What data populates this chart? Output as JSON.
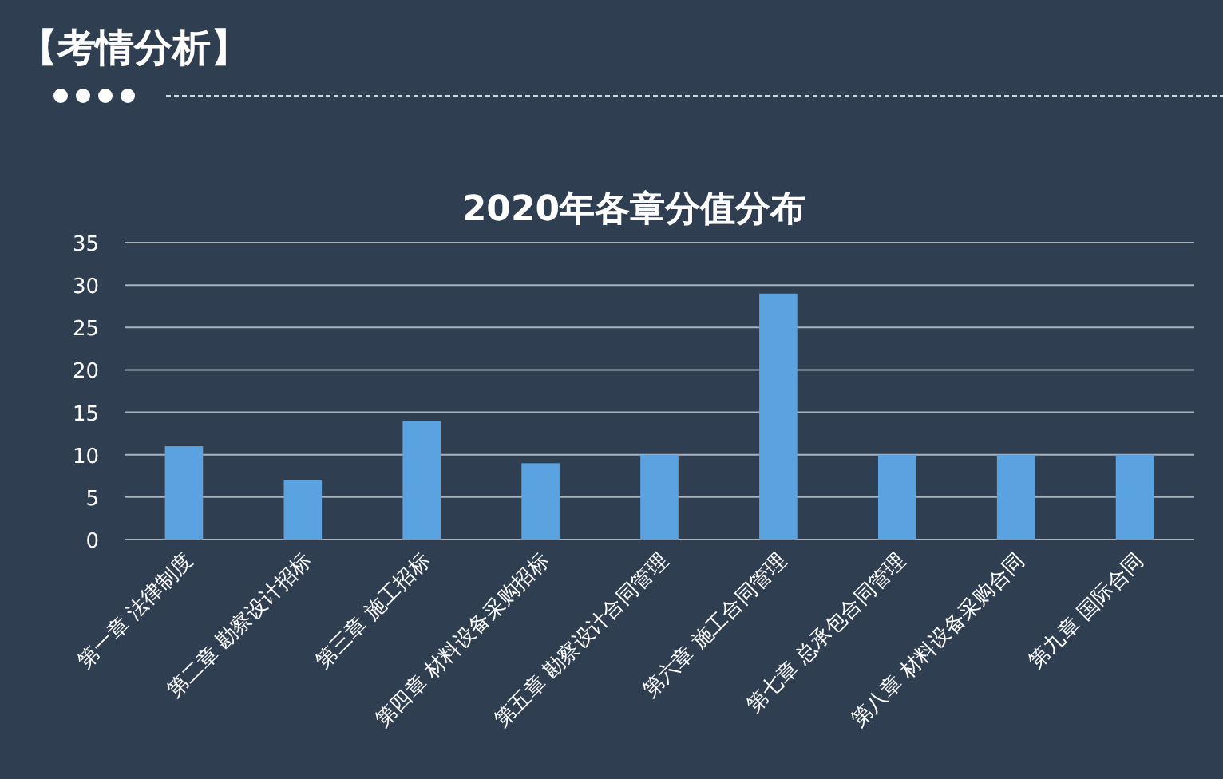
{
  "chart_data": {
    "type": "bar",
    "title": "2020年各章分值分布",
    "annotations": [
      "【考情分析】"
    ],
    "categories": [
      "第一章 法律制度",
      "第二章 勘察设计招标",
      "第三章 施工招标",
      "第四章 材料设备采购招标",
      "第五章 勘察设计合同管理",
      "第六章 施工合同管理",
      "第七章 总承包合同管理",
      "第八章 材料设备采购合同",
      "第九章 国际合同"
    ],
    "values": [
      11,
      7,
      14,
      9,
      10,
      29,
      10,
      10,
      10
    ],
    "color": "#5ba3e0",
    "ylim": [
      0,
      35
    ],
    "yticks": [
      0,
      5,
      10,
      15,
      20,
      25,
      30,
      35
    ],
    "grid": "y"
  }
}
